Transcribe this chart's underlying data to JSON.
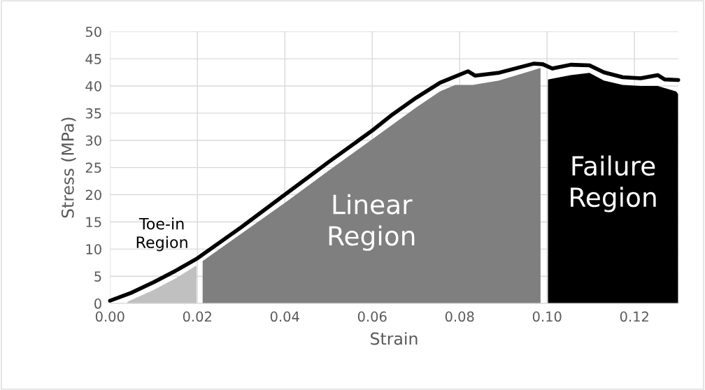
{
  "chart_data": {
    "type": "line",
    "xlabel": "Strain",
    "ylabel": "Stress (MPa)",
    "xlim": [
      0,
      0.13
    ],
    "ylim": [
      0,
      50
    ],
    "xticks": [
      {
        "value": 0,
        "label": "0.00"
      },
      {
        "value": 0.02,
        "label": "0.02"
      },
      {
        "value": 0.04,
        "label": "0.04"
      },
      {
        "value": 0.06,
        "label": "0.06"
      },
      {
        "value": 0.08,
        "label": "0.08"
      },
      {
        "value": 0.1,
        "label": "0.10"
      },
      {
        "value": 0.12,
        "label": "0.12"
      }
    ],
    "yticks": [
      0,
      5,
      10,
      15,
      20,
      25,
      30,
      35,
      40,
      45,
      50
    ],
    "grid": true,
    "line_style": "solid",
    "marker": "none",
    "series": [
      {
        "type": "area",
        "color": "#c0c0c0",
        "x": [
          0.004,
          0.01,
          0.015,
          0.0198
        ],
        "values": [
          0.3,
          2.5,
          4.6,
          7.0
        ]
      },
      {
        "type": "area",
        "color": "#7f7f7f",
        "x": [
          0.0212,
          0.03,
          0.04,
          0.05,
          0.06,
          0.07,
          0.0755,
          0.079,
          0.083,
          0.089,
          0.0985
        ],
        "values": [
          7.8,
          12.8,
          18.5,
          24.4,
          30.2,
          36.0,
          39.0,
          40.2,
          40.2,
          41.0,
          43.3
        ]
      },
      {
        "type": "area",
        "color": "#000000",
        "x": [
          0.1002,
          0.1054,
          0.1097,
          0.113,
          0.1173,
          0.1214,
          0.1253,
          0.1295,
          0.13
        ],
        "values": [
          41.2,
          42.0,
          42.4,
          41.0,
          40.2,
          40.0,
          40.0,
          39.0,
          38.5
        ]
      },
      {
        "color": "#000000",
        "x": [
          0,
          0.005,
          0.01,
          0.015,
          0.02,
          0.03,
          0.04,
          0.05,
          0.06,
          0.0647,
          0.07,
          0.0755,
          0.0819,
          0.0835,
          0.0888,
          0.0969,
          0.099,
          0.1012,
          0.1054,
          0.1097,
          0.113,
          0.1173,
          0.1214,
          0.1253,
          0.1269,
          0.13
        ],
        "values": [
          0.5,
          2.0,
          3.9,
          6.0,
          8.3,
          14.0,
          20.0,
          26.0,
          31.8,
          34.8,
          37.8,
          40.6,
          42.7,
          41.9,
          42.4,
          44.1,
          44.0,
          43.2,
          43.9,
          43.8,
          42.5,
          41.6,
          41.4,
          42.0,
          41.2,
          41.1
        ]
      }
    ],
    "annotations": [
      "Toe-in\nRegion",
      "Linear\nRegion",
      "Failure\nRegion"
    ]
  }
}
